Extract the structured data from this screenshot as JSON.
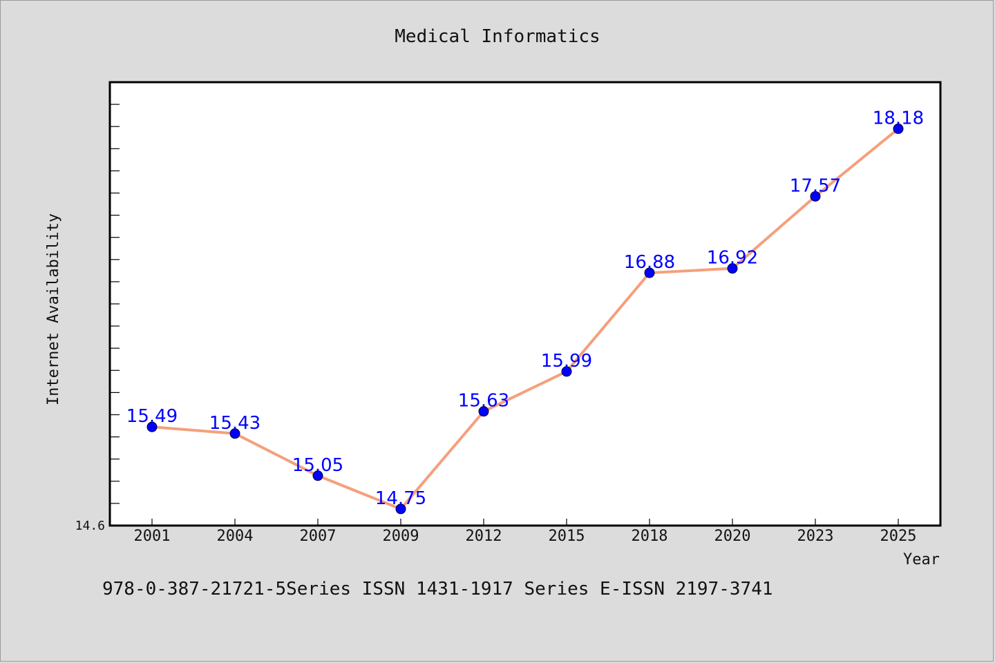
{
  "chart_data": {
    "type": "line",
    "title": "Medical Informatics",
    "xlabel": "Year",
    "ylabel": "Internet Availability",
    "categories": [
      "2001",
      "2004",
      "2007",
      "2009",
      "2012",
      "2015",
      "2018",
      "2020",
      "2023",
      "2025"
    ],
    "values": [
      15.49,
      15.43,
      15.05,
      14.75,
      15.63,
      15.99,
      16.88,
      16.92,
      17.57,
      18.18
    ],
    "data_labels": [
      "15.49",
      "15.43",
      "15.05",
      "14.75",
      "15.63",
      "15.99",
      "16.88",
      "16.92",
      "17.57",
      "18.18"
    ],
    "ylim": [
      14.6,
      18.6
    ],
    "y_tick_label": "14.6",
    "grid": false,
    "line_color": "#f4a07c",
    "marker_color": "#0000ff"
  },
  "footer_text": "978-0-387-21721-5Series ISSN 1431-1917 Series E-ISSN 2197-3741"
}
